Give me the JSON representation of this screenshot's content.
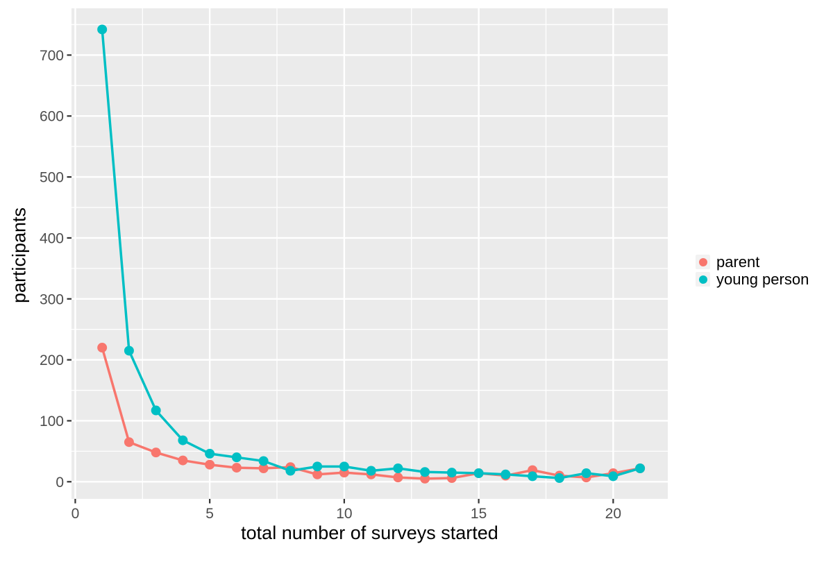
{
  "figure": {
    "background": "#FFFFFF"
  },
  "chart_data": {
    "type": "line",
    "title": "",
    "xlabel": "total number of surveys started",
    "ylabel": "participants",
    "x": [
      1,
      2,
      3,
      4,
      5,
      6,
      7,
      8,
      9,
      10,
      11,
      12,
      13,
      14,
      15,
      16,
      17,
      18,
      19,
      20,
      21
    ],
    "series": [
      {
        "name": "parent",
        "color": "#F8766D",
        "values": [
          220,
          65,
          48,
          35,
          28,
          23,
          22,
          24,
          12,
          15,
          12,
          7,
          5,
          6,
          14,
          10,
          19,
          10,
          7,
          14,
          22
        ]
      },
      {
        "name": "young person",
        "color": "#00BFC4",
        "values": [
          742,
          215,
          117,
          68,
          46,
          40,
          34,
          18,
          25,
          25,
          18,
          22,
          16,
          15,
          14,
          12,
          9,
          6,
          14,
          9,
          22
        ]
      }
    ],
    "x_ticks": [
      0,
      5,
      10,
      15,
      20
    ],
    "y_ticks": [
      0,
      100,
      200,
      300,
      400,
      500,
      600,
      700
    ],
    "x_minor_ticks": [
      2.5,
      7.5,
      12.5,
      17.5
    ],
    "y_minor_ticks": [
      50,
      150,
      250,
      350,
      450,
      550,
      650,
      750
    ],
    "xlim": [
      -0.14,
      22.03
    ],
    "ylim": [
      -28.1,
      776.7
    ],
    "grid": true,
    "legend_position": "right",
    "panel_bg": "#EBEBEB",
    "grid_color": "#FFFFFF",
    "tick_color": "#333333",
    "tick_label_color": "#4D4D4D",
    "axis_title_color": "#000000",
    "legend_key_bg": "#F2F2F2",
    "point_radius": 7,
    "line_width": 3.5
  }
}
